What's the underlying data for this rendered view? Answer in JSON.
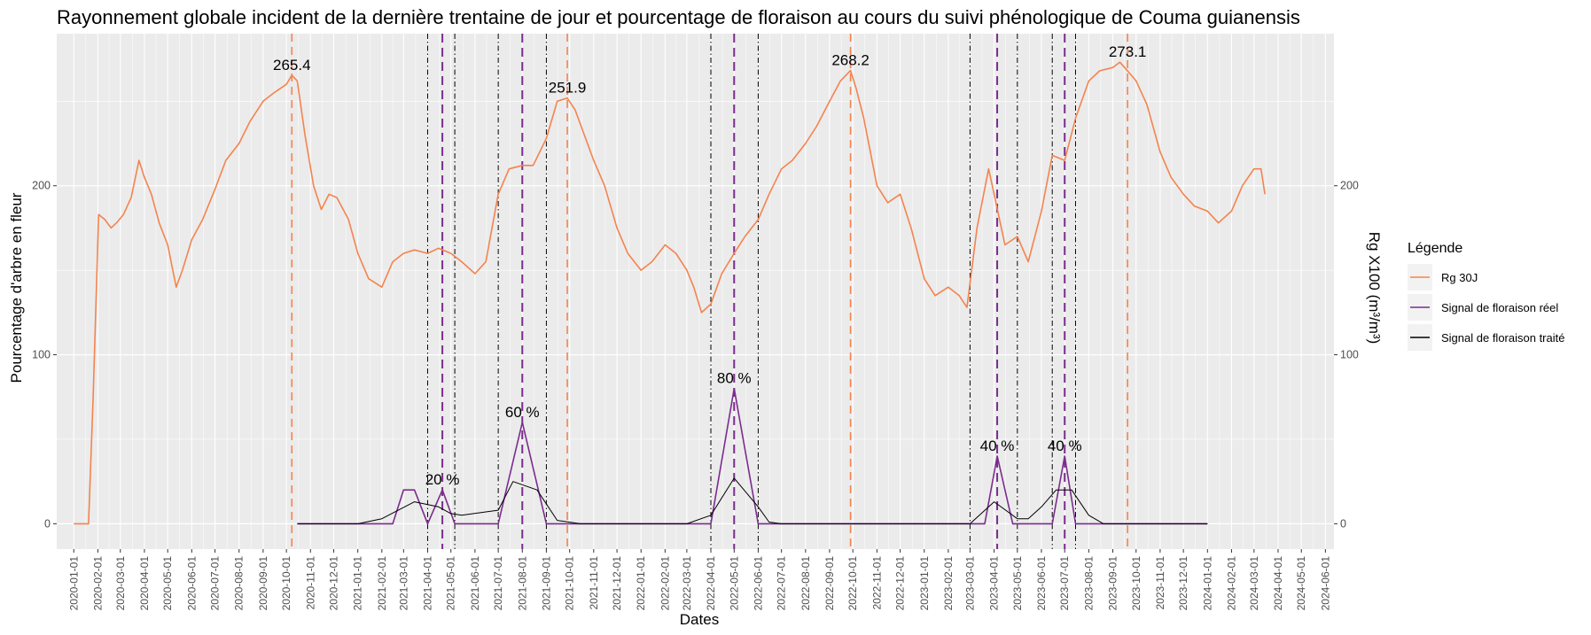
{
  "chart_data": {
    "type": "line",
    "title": "Rayonnement globale incident de la dernière trentaine de jour et pourcentage de floraison au cours du suivi phénologique de Couma guianensis",
    "xlabel": "Dates",
    "ylabel": "Pourcentage d'arbre en fleur",
    "ylabel_right": "Rg X100 (m³/m³)",
    "xlim": [
      "2019-12-10",
      "2024-06-12"
    ],
    "ylim": [
      -15,
      290
    ],
    "y_ticks": [
      0,
      100,
      200
    ],
    "x_ticks": [
      "2020-01-01",
      "2020-02-01",
      "2020-03-01",
      "2020-04-01",
      "2020-05-01",
      "2020-06-01",
      "2020-07-01",
      "2020-08-01",
      "2020-09-01",
      "2020-10-01",
      "2020-11-01",
      "2020-12-01",
      "2021-01-01",
      "2021-02-01",
      "2021-03-01",
      "2021-04-01",
      "2021-05-01",
      "2021-06-01",
      "2021-07-01",
      "2021-08-01",
      "2021-09-01",
      "2021-10-01",
      "2021-11-01",
      "2021-12-01",
      "2022-01-01",
      "2022-02-01",
      "2022-03-01",
      "2022-04-01",
      "2022-05-01",
      "2022-06-01",
      "2022-07-01",
      "2022-08-01",
      "2022-09-01",
      "2022-10-01",
      "2022-11-01",
      "2022-12-01",
      "2023-01-01",
      "2023-02-01",
      "2023-03-01",
      "2023-04-01",
      "2023-05-01",
      "2023-06-01",
      "2023-07-01",
      "2023-08-01",
      "2023-09-01",
      "2023-10-01",
      "2023-11-01",
      "2023-12-01",
      "2024-01-01",
      "2024-02-01",
      "2024-03-01",
      "2024-04-01",
      "2024-05-01",
      "2024-06-01"
    ],
    "grid": true,
    "legend": {
      "title": "Légende",
      "position": "right"
    },
    "colors": {
      "panel": "#ebebeb",
      "grid": "#ffffff",
      "rg": "#f4834e",
      "reel": "#7b2d8e",
      "traite": "#000000"
    },
    "series": [
      {
        "name": "Rg 30J",
        "color": "#f4834e",
        "x": [
          "2020-01-01",
          "2020-01-20",
          "2020-01-26",
          "2020-02-02",
          "2020-02-10",
          "2020-02-18",
          "2020-02-25",
          "2020-03-05",
          "2020-03-15",
          "2020-03-25",
          "2020-04-01",
          "2020-04-10",
          "2020-04-20",
          "2020-05-01",
          "2020-05-12",
          "2020-05-20",
          "2020-06-01",
          "2020-06-15",
          "2020-07-01",
          "2020-07-15",
          "2020-08-01",
          "2020-08-15",
          "2020-09-01",
          "2020-09-15",
          "2020-10-01",
          "2020-10-08",
          "2020-10-15",
          "2020-10-25",
          "2020-11-05",
          "2020-11-15",
          "2020-11-25",
          "2020-12-05",
          "2020-12-20",
          "2021-01-01",
          "2021-01-15",
          "2021-02-01",
          "2021-02-15",
          "2021-03-01",
          "2021-03-15",
          "2021-04-01",
          "2021-04-15",
          "2021-05-01",
          "2021-05-15",
          "2021-06-01",
          "2021-06-15",
          "2021-07-01",
          "2021-07-15",
          "2021-08-01",
          "2021-08-15",
          "2021-09-01",
          "2021-09-15",
          "2021-09-28",
          "2021-10-08",
          "2021-10-20",
          "2021-11-01",
          "2021-11-15",
          "2021-12-01",
          "2021-12-15",
          "2022-01-01",
          "2022-01-15",
          "2022-02-01",
          "2022-02-15",
          "2022-03-01",
          "2022-03-10",
          "2022-03-20",
          "2022-04-01",
          "2022-04-15",
          "2022-05-01",
          "2022-05-15",
          "2022-06-01",
          "2022-06-15",
          "2022-07-01",
          "2022-07-15",
          "2022-08-01",
          "2022-08-15",
          "2022-09-01",
          "2022-09-15",
          "2022-09-28",
          "2022-10-05",
          "2022-10-15",
          "2022-11-01",
          "2022-11-15",
          "2022-12-01",
          "2022-12-15",
          "2023-01-01",
          "2023-01-15",
          "2023-02-01",
          "2023-02-15",
          "2023-02-25",
          "2023-03-10",
          "2023-03-25",
          "2023-04-01",
          "2023-04-15",
          "2023-05-01",
          "2023-05-15",
          "2023-06-01",
          "2023-06-15",
          "2023-07-01",
          "2023-07-15",
          "2023-08-01",
          "2023-08-15",
          "2023-09-01",
          "2023-09-10",
          "2023-09-20",
          "2023-10-01",
          "2023-10-15",
          "2023-11-01",
          "2023-11-15",
          "2023-12-01",
          "2023-12-15",
          "2024-01-01",
          "2024-01-15",
          "2024-02-01",
          "2024-02-15",
          "2024-03-01",
          "2024-03-10",
          "2024-03-15"
        ],
        "values": [
          0,
          0,
          75,
          183,
          180,
          175,
          178,
          183,
          193,
          215,
          205,
          195,
          178,
          165,
          140,
          150,
          168,
          180,
          198,
          215,
          225,
          238,
          250,
          255,
          260,
          265.4,
          262,
          230,
          200,
          186,
          195,
          193,
          180,
          160,
          145,
          140,
          155,
          160,
          162,
          160,
          163,
          160,
          155,
          148,
          155,
          195,
          210,
          212,
          212,
          228,
          250,
          251.9,
          245,
          230,
          215,
          200,
          175,
          160,
          150,
          155,
          165,
          160,
          150,
          140,
          125,
          130,
          148,
          160,
          170,
          180,
          195,
          210,
          215,
          225,
          235,
          250,
          262,
          268.2,
          258,
          240,
          200,
          190,
          195,
          175,
          145,
          135,
          140,
          135,
          128,
          175,
          210,
          195,
          165,
          170,
          155,
          185,
          218,
          215,
          240,
          262,
          268,
          270,
          273.1,
          268,
          262,
          248,
          220,
          205,
          195,
          188,
          185,
          178,
          185,
          200,
          210,
          210,
          195
        ]
      },
      {
        "name": "Signal de floraison réel",
        "color": "#7b2d8e",
        "x": [
          "2020-10-15",
          "2021-01-01",
          "2021-02-15",
          "2021-03-01",
          "2021-03-15",
          "2021-04-01",
          "2021-04-20",
          "2021-05-06",
          "2021-07-01",
          "2021-08-01",
          "2021-09-01",
          "2022-04-01",
          "2022-05-01",
          "2022-06-01",
          "2023-03-01",
          "2023-03-20",
          "2023-04-05",
          "2023-04-25",
          "2023-06-01",
          "2023-06-15",
          "2023-07-01",
          "2023-07-15",
          "2023-08-01",
          "2024-01-01"
        ],
        "values": [
          0,
          0,
          0,
          20,
          20,
          0,
          20,
          0,
          0,
          60,
          0,
          0,
          80,
          0,
          0,
          0,
          40,
          0,
          0,
          0,
          40,
          0,
          0,
          0
        ]
      },
      {
        "name": "Signal de floraison traité",
        "color": "#000000",
        "x": [
          "2020-10-15",
          "2021-01-01",
          "2021-02-01",
          "2021-03-15",
          "2021-04-15",
          "2021-05-01",
          "2021-05-15",
          "2021-06-15",
          "2021-07-01",
          "2021-07-20",
          "2021-08-20",
          "2021-09-15",
          "2021-10-15",
          "2022-03-01",
          "2022-04-01",
          "2022-05-01",
          "2022-06-01",
          "2022-06-15",
          "2022-07-01",
          "2023-03-01",
          "2023-04-01",
          "2023-05-01",
          "2023-05-15",
          "2023-06-01",
          "2023-06-20",
          "2023-07-10",
          "2023-08-01",
          "2023-08-20",
          "2024-01-01"
        ],
        "values": [
          0,
          0,
          3,
          13,
          10,
          6,
          5,
          7,
          8,
          25,
          20,
          2,
          0,
          0,
          5,
          27,
          10,
          1,
          0,
          0,
          13,
          3,
          3,
          10,
          20,
          20,
          5,
          0,
          0
        ]
      }
    ],
    "vlines_rg_peaks": [
      "2020-10-08",
      "2021-09-28",
      "2022-09-28",
      "2023-09-20"
    ],
    "vlines_flower_peaks": [
      "2021-04-20",
      "2021-08-01",
      "2022-05-01",
      "2023-04-05",
      "2023-07-01"
    ],
    "vlines_windows": [
      "2021-04-01",
      "2021-05-06",
      "2021-07-01",
      "2021-09-01",
      "2022-04-01",
      "2022-06-01",
      "2023-03-01",
      "2023-05-01",
      "2023-06-15",
      "2023-07-15"
    ],
    "annotations": [
      {
        "text": "265.4",
        "x": "2020-10-08",
        "y": 265.4
      },
      {
        "text": "251.9",
        "x": "2021-09-28",
        "y": 251.9
      },
      {
        "text": "268.2",
        "x": "2022-09-28",
        "y": 268.2
      },
      {
        "text": "273.1",
        "x": "2023-09-20",
        "y": 273.1
      },
      {
        "text": "20 %",
        "x": "2021-04-20",
        "y": 20
      },
      {
        "text": "60 %",
        "x": "2021-08-01",
        "y": 60
      },
      {
        "text": "80 %",
        "x": "2022-05-01",
        "y": 80
      },
      {
        "text": "40 %",
        "x": "2023-04-05",
        "y": 40
      },
      {
        "text": "40 %",
        "x": "2023-07-01",
        "y": 40
      }
    ]
  }
}
